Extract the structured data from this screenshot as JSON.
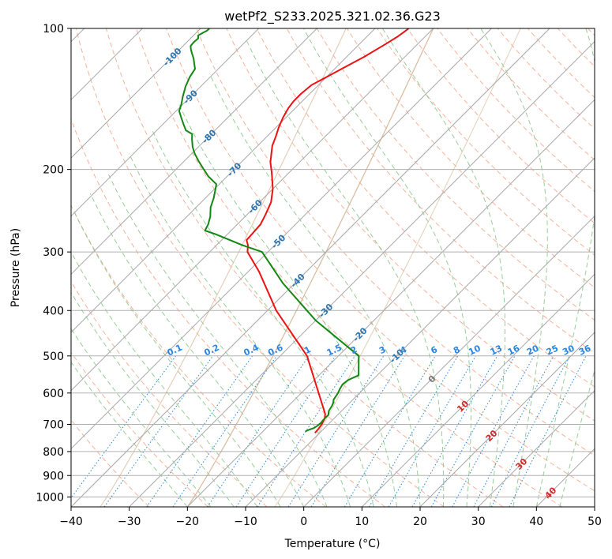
{
  "chart_data": {
    "type": "line",
    "title": "wetPf2_S233.2025.321.02.36.G23",
    "xlabel": "Temperature (°C)",
    "ylabel": "Pressure (hPa)",
    "xlim": [
      -40,
      50
    ],
    "ylim": [
      1050,
      100
    ],
    "y_scale": "log",
    "x_ticks": [
      -40,
      -30,
      -20,
      -10,
      0,
      10,
      20,
      30,
      40,
      50
    ],
    "y_ticks": [
      100,
      200,
      300,
      400,
      500,
      600,
      700,
      800,
      900,
      1000
    ],
    "grid": true,
    "skew_isotherms": true,
    "colors": {
      "temperature": "#ee1111",
      "dewpoint": "#118811",
      "isotherm": "#a8a8a8",
      "grid": "#b0b0b0",
      "dry_adiabat": "#f4a58a",
      "moist_adiabat": "#8dc98d",
      "mixing_ratio": "#3a8fd9",
      "mixing_ratio_label": "#2a85e0",
      "isotherm_label": "#2b75b0",
      "warm_isotherm_label": "#d02828",
      "zero_isotherm_label": "#777777",
      "brown_curve": "#d9b99b"
    },
    "series": [
      {
        "name": "",
        "role": "temperature",
        "points": [
          [
            -10.8,
            730
          ],
          [
            -10.9,
            715
          ],
          [
            -11.1,
            700
          ],
          [
            -11.6,
            680
          ],
          [
            -12.3,
            665
          ],
          [
            -25.4,
            500
          ],
          [
            -38.5,
            400
          ],
          [
            -48.2,
            330
          ],
          [
            -53.5,
            300
          ],
          [
            -54.6,
            290
          ],
          [
            -55.7,
            283
          ],
          [
            -55.8,
            275
          ],
          [
            -56.0,
            262
          ],
          [
            -56.8,
            250
          ],
          [
            -58.0,
            235
          ],
          [
            -60.0,
            220
          ],
          [
            -63.0,
            203
          ],
          [
            -65.0,
            193
          ],
          [
            -67.5,
            178
          ],
          [
            -68.5,
            170
          ],
          [
            -69.5,
            163
          ],
          [
            -70.5,
            155
          ],
          [
            -71.2,
            148
          ],
          [
            -71.5,
            143
          ],
          [
            -71.5,
            138
          ],
          [
            -71.2,
            132
          ],
          [
            -70.0,
            127
          ],
          [
            -68.8,
            122
          ],
          [
            -67.0,
            115
          ],
          [
            -65.5,
            108
          ],
          [
            -64.7,
            104
          ],
          [
            -64.2,
            100
          ]
        ]
      },
      {
        "name": "",
        "role": "dewpoint",
        "points": [
          [
            -12.7,
            725
          ],
          [
            -12.3,
            718
          ],
          [
            -11.8,
            713
          ],
          [
            -11.6,
            705
          ],
          [
            -11.5,
            695
          ],
          [
            -11.6,
            685
          ],
          [
            -11.6,
            668
          ],
          [
            -12.2,
            655
          ],
          [
            -12.5,
            640
          ],
          [
            -12.8,
            630
          ],
          [
            -13.3,
            620
          ],
          [
            -13.7,
            600
          ],
          [
            -14.1,
            587
          ],
          [
            -14.4,
            575
          ],
          [
            -14.2,
            563
          ],
          [
            -13.6,
            555
          ],
          [
            -13.2,
            550
          ],
          [
            -16.5,
            500
          ],
          [
            -30.0,
            420
          ],
          [
            -42.0,
            350
          ],
          [
            -51.0,
            300
          ],
          [
            -55.6,
            290
          ],
          [
            -62.0,
            275
          ],
          [
            -64.5,
            270
          ],
          [
            -65.0,
            262
          ],
          [
            -66.0,
            252
          ],
          [
            -67.5,
            241
          ],
          [
            -68.6,
            230
          ],
          [
            -70.5,
            215
          ],
          [
            -73.2,
            207
          ],
          [
            -75.2,
            200
          ],
          [
            -77.5,
            192
          ],
          [
            -79.5,
            185
          ],
          [
            -81.0,
            179
          ],
          [
            -82.5,
            172
          ],
          [
            -83.3,
            168
          ],
          [
            -85.0,
            165
          ],
          [
            -86.5,
            160
          ],
          [
            -88.0,
            155
          ],
          [
            -89.5,
            150
          ],
          [
            -90.3,
            145
          ],
          [
            -91.3,
            140
          ],
          [
            -92.6,
            133
          ],
          [
            -93.5,
            127
          ],
          [
            -94.0,
            122
          ],
          [
            -95.0,
            119
          ],
          [
            -96.0,
            116
          ],
          [
            -97.2,
            113
          ],
          [
            -98.0,
            111
          ],
          [
            -98.7,
            109
          ],
          [
            -98.8,
            107
          ],
          [
            -98.7,
            105
          ],
          [
            -99.2,
            103.5
          ],
          [
            -98.8,
            102
          ],
          [
            -98.5,
            101
          ],
          [
            -98.5,
            100
          ]
        ]
      }
    ],
    "isotherm_labels": [
      "-100",
      "-90",
      "-80",
      "-70",
      "-60",
      "-50",
      "-40",
      "-30",
      "-20",
      "-10",
      "0",
      "10",
      "20",
      "30",
      "40"
    ],
    "mixing_ratio_labels": [
      "0.1",
      "0.2",
      "0.4",
      "0.6",
      "1",
      "1.5",
      "2",
      "3",
      "4",
      "6",
      "8",
      "10",
      "13",
      "16",
      "20",
      "25",
      "30",
      "36"
    ]
  }
}
